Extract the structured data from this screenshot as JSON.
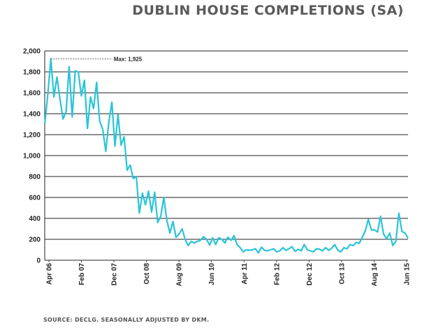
{
  "chart_data": {
    "type": "line",
    "title": "DUBLIN HOUSE COMPLETIONS (SA)",
    "source": "SOURCE: DECLG. SEASONALLY ADJUSTED BY DKM.",
    "xlabel": "",
    "ylabel": "",
    "ylim": [
      0,
      2000
    ],
    "yticks": [
      0,
      200,
      400,
      600,
      800,
      1000,
      1200,
      1400,
      1600,
      1800,
      2000
    ],
    "ytick_labels": [
      "0",
      "200",
      "400",
      "600",
      "800",
      "1,000",
      "1,200",
      "1,400",
      "1,600",
      "1,800",
      "2,000"
    ],
    "xtick_labels": [
      "Apr 06",
      "Feb 07",
      "Dec 07",
      "Oct 08",
      "Aug 09",
      "Jun 10",
      "Apr 11",
      "Feb 12",
      "Dec 12",
      "Oct 13",
      "Aug 14",
      "Jun 15"
    ],
    "grid": "horizontal",
    "line_color": "#29c4d8",
    "annotation": {
      "text": "Max: 1,925",
      "value": 1925
    },
    "series": [
      {
        "values": [
          1300,
          1580,
          1925,
          1560,
          1750,
          1540,
          1350,
          1420,
          1850,
          1370,
          1810,
          1800,
          1570,
          1720,
          1260,
          1560,
          1450,
          1700,
          1330,
          1250,
          1040,
          1320,
          1510,
          1090,
          1390,
          1100,
          1180,
          860,
          910,
          780,
          800,
          450,
          640,
          530,
          660,
          460,
          650,
          360,
          420,
          600,
          380,
          260,
          370,
          220,
          250,
          300,
          200,
          140,
          180,
          165,
          180,
          190,
          225,
          200,
          145,
          215,
          150,
          215,
          200,
          165,
          220,
          190,
          235,
          150,
          120,
          80,
          100,
          95,
          100,
          110,
          70,
          125,
          95,
          90,
          100,
          110,
          80,
          90,
          120,
          95,
          110,
          130,
          85,
          105,
          90,
          150,
          100,
          90,
          80,
          110,
          105,
          90,
          120,
          95,
          115,
          150,
          95,
          80,
          120,
          110,
          150,
          140,
          170,
          160,
          220,
          280,
          390,
          290,
          290,
          270,
          420,
          250,
          205,
          260,
          140,
          180,
          450,
          275,
          260,
          210
        ]
      }
    ]
  }
}
